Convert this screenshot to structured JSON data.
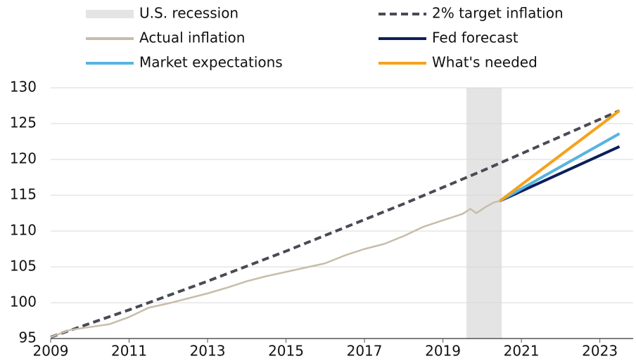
{
  "chart_data": {
    "type": "line",
    "xlim": [
      2009,
      2023.85
    ],
    "xticks": [
      2009,
      2011,
      2013,
      2015,
      2017,
      2019,
      2021,
      2023
    ],
    "ylim": [
      95,
      130
    ],
    "yticks": [
      95,
      100,
      105,
      110,
      115,
      120,
      125,
      130
    ],
    "grid": true,
    "recession": {
      "name": "U.S. recession",
      "color": "#e4e4e4",
      "x": [
        2019.6,
        2020.5
      ]
    },
    "series": [
      {
        "name": "2% target inflation",
        "color": "#4a4a55",
        "dash": true,
        "x": [
          2009,
          2010,
          2011,
          2012,
          2013,
          2014,
          2015,
          2016,
          2017,
          2018,
          2019,
          2020,
          2021,
          2022,
          2023,
          2023.5
        ],
        "values": [
          95.2,
          97.1,
          99.0,
          101.0,
          103.0,
          105.1,
          107.2,
          109.4,
          111.6,
          113.8,
          116.1,
          118.4,
          120.8,
          123.2,
          125.6,
          126.8
        ]
      },
      {
        "name": "Actual inflation",
        "color": "#c8bcaa",
        "x": [
          2009,
          2009.5,
          2010,
          2010.5,
          2011,
          2011.5,
          2012,
          2012.5,
          2013,
          2013.5,
          2014,
          2014.5,
          2015,
          2015.5,
          2016,
          2016.5,
          2017,
          2017.5,
          2018,
          2018.5,
          2019,
          2019.5,
          2019.7,
          2019.85,
          2020.1,
          2020.3,
          2020.45
        ],
        "values": [
          95.2,
          96.2,
          96.6,
          97.0,
          98.0,
          99.3,
          99.9,
          100.6,
          101.3,
          102.1,
          103.0,
          103.7,
          104.3,
          104.9,
          105.5,
          106.6,
          107.5,
          108.2,
          109.3,
          110.6,
          111.5,
          112.4,
          113.1,
          112.5,
          113.4,
          114.0,
          114.2
        ]
      },
      {
        "name": "Fed forecast",
        "color": "#0c1f5a",
        "x": [
          2020.45,
          2023.5
        ],
        "values": [
          114.2,
          121.8
        ]
      },
      {
        "name": "Market expectations",
        "color": "#56b4e0",
        "x": [
          2020.45,
          2023.5
        ],
        "values": [
          114.2,
          123.6
        ]
      },
      {
        "name": "What's needed",
        "color": "#f5a21b",
        "x": [
          2020.45,
          2023.5
        ],
        "values": [
          114.2,
          126.8
        ]
      }
    ]
  }
}
